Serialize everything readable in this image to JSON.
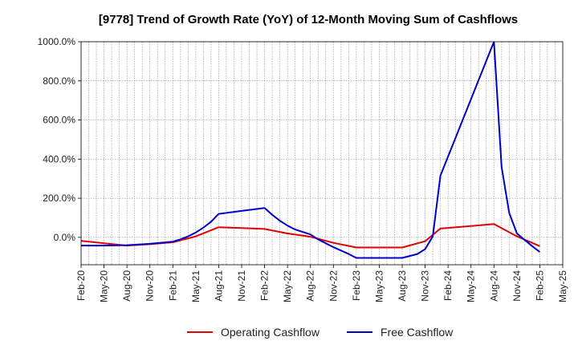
{
  "chart_data": {
    "type": "line",
    "title": "[9778]  Trend of Growth Rate (YoY) of 12-Month Moving Sum of Cashflows",
    "xlabel": "",
    "ylabel": "",
    "ylim": [
      -140,
      1000
    ],
    "y_ticks": [
      0,
      200,
      400,
      600,
      800,
      1000
    ],
    "y_tick_labels": [
      "0.0%",
      "200.0%",
      "400.0%",
      "600.0%",
      "800.0%",
      "1000.0%"
    ],
    "x_ticks": [
      "Feb-20",
      "May-20",
      "Aug-20",
      "Nov-20",
      "Feb-21",
      "May-21",
      "Aug-21",
      "Nov-21",
      "Feb-22",
      "May-22",
      "Aug-22",
      "Nov-22",
      "Feb-23",
      "May-23",
      "Aug-23",
      "Nov-23",
      "Feb-24",
      "May-24",
      "Aug-24",
      "Nov-24",
      "Feb-25",
      "May-25"
    ],
    "x_start": "2020-02",
    "grid": true,
    "legend_position": "bottom",
    "series": [
      {
        "name": "Operating Cashflow",
        "color": "#e00000",
        "points": [
          [
            "2020-02",
            -18
          ],
          [
            "2020-05",
            -30
          ],
          [
            "2020-08",
            -42
          ],
          [
            "2020-11",
            -35
          ],
          [
            "2021-02",
            -25
          ],
          [
            "2021-05",
            5
          ],
          [
            "2021-08",
            52
          ],
          [
            "2021-11",
            48
          ],
          [
            "2022-02",
            43
          ],
          [
            "2022-05",
            20
          ],
          [
            "2022-08",
            3
          ],
          [
            "2022-11",
            -28
          ],
          [
            "2023-02",
            -52
          ],
          [
            "2023-05",
            -52
          ],
          [
            "2023-08",
            -52
          ],
          [
            "2023-11",
            -20
          ],
          [
            "2024-01",
            45
          ],
          [
            "2024-05",
            58
          ],
          [
            "2024-08",
            68
          ],
          [
            "2024-11",
            5
          ],
          [
            "2025-02",
            -45
          ]
        ]
      },
      {
        "name": "Free Cashflow",
        "color": "#0000cc",
        "points": [
          [
            "2020-02",
            -42
          ],
          [
            "2020-05",
            -42
          ],
          [
            "2020-08",
            -40
          ],
          [
            "2020-11",
            -33
          ],
          [
            "2021-02",
            -22
          ],
          [
            "2021-03",
            -10
          ],
          [
            "2021-04",
            5
          ],
          [
            "2021-05",
            25
          ],
          [
            "2021-06",
            50
          ],
          [
            "2021-07",
            80
          ],
          [
            "2021-08",
            120
          ],
          [
            "2021-11",
            135
          ],
          [
            "2022-02",
            150
          ],
          [
            "2022-03",
            115
          ],
          [
            "2022-04",
            85
          ],
          [
            "2022-05",
            60
          ],
          [
            "2022-06",
            40
          ],
          [
            "2022-08",
            15
          ],
          [
            "2022-09",
            -10
          ],
          [
            "2022-11",
            -50
          ],
          [
            "2023-01",
            -85
          ],
          [
            "2023-02",
            -105
          ],
          [
            "2023-05",
            -105
          ],
          [
            "2023-08",
            -105
          ],
          [
            "2023-10",
            -85
          ],
          [
            "2023-11",
            -60
          ],
          [
            "2023-12",
            5
          ],
          [
            "2024-01",
            315
          ],
          [
            "2024-08",
            1000
          ],
          [
            "2024-09",
            360
          ],
          [
            "2024-10",
            125
          ],
          [
            "2024-11",
            20
          ],
          [
            "2025-01",
            -45
          ],
          [
            "2025-02",
            -75
          ]
        ]
      }
    ]
  }
}
